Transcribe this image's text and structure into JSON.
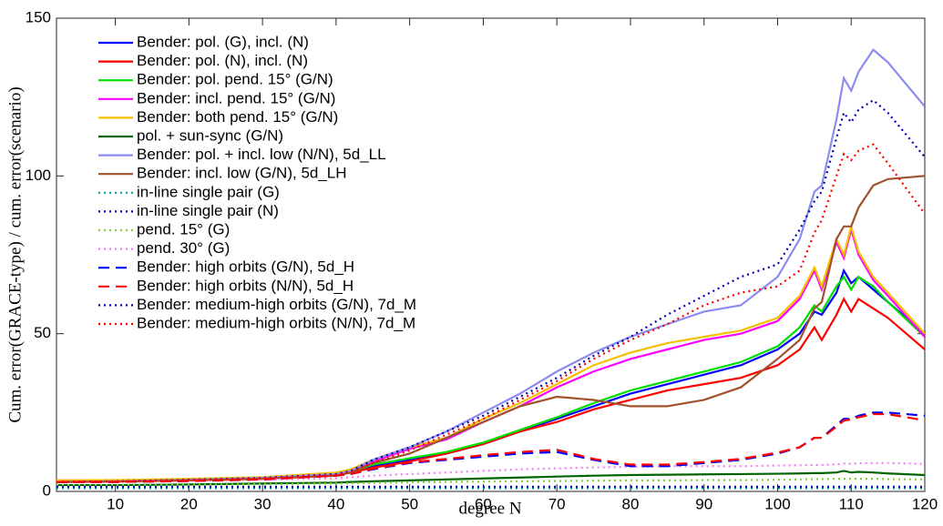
{
  "chart_data": {
    "type": "line",
    "x_label": "degree N",
    "y_label": "Cum. error(GRACE-type) / cum. error(scenario)",
    "x": [
      2,
      10,
      20,
      30,
      40,
      42,
      45,
      50,
      55,
      60,
      65,
      70,
      75,
      80,
      85,
      90,
      95,
      100,
      103,
      105,
      106,
      108,
      109,
      110,
      111,
      113,
      115,
      120
    ],
    "xlim": [
      2,
      120
    ],
    "xticks": [
      10,
      20,
      30,
      40,
      50,
      60,
      70,
      80,
      90,
      100,
      110,
      120
    ],
    "ylim": [
      0,
      150
    ],
    "yticks": [
      0,
      50,
      100,
      150
    ],
    "grid": false,
    "legend": "upper-left",
    "series": [
      {
        "name": "Bender: pol. (G), incl. (N)",
        "color": "#0000ff",
        "style": "solid",
        "values": [
          3,
          3.2,
          3.6,
          4.2,
          5.2,
          6,
          8,
          10,
          12,
          15,
          19,
          23,
          27,
          31,
          34,
          37,
          40,
          45,
          50,
          57,
          56,
          63,
          70,
          66,
          68,
          64,
          60,
          50
        ]
      },
      {
        "name": "Bender: pol. (N), incl. (N)",
        "color": "#ff0000",
        "style": "solid",
        "values": [
          3,
          3.2,
          3.5,
          4,
          5,
          6,
          7.5,
          9.5,
          12,
          15,
          19,
          22,
          26,
          29,
          32,
          34,
          36,
          40,
          45,
          52,
          48,
          56,
          61,
          57,
          61,
          58,
          55,
          45
        ]
      },
      {
        "name": "Bender: pol. pend. 15° (G/N)",
        "color": "#00e000",
        "style": "solid",
        "values": [
          3,
          3.2,
          3.6,
          4.3,
          5.3,
          6.2,
          8.5,
          10.5,
          12.5,
          15.5,
          19.5,
          23.5,
          28,
          32,
          35,
          38,
          41,
          46,
          52,
          59,
          57,
          65,
          68,
          64,
          68,
          65,
          60,
          49
        ]
      },
      {
        "name": "Bender: incl. pend. 15° (G/N)",
        "color": "#ff00ff",
        "style": "solid",
        "values": [
          3.5,
          3.5,
          3.9,
          4.4,
          5.8,
          6.8,
          9.5,
          13.5,
          16.5,
          22,
          27,
          33,
          38,
          42,
          45,
          48,
          50,
          54,
          61,
          70,
          64,
          79,
          74,
          83,
          75,
          67,
          62,
          49
        ]
      },
      {
        "name": "Bender: both pend. 15° (G/N)",
        "color": "#f5c000",
        "style": "solid",
        "values": [
          3.5,
          3.6,
          4,
          4.5,
          6,
          7,
          10,
          14,
          17,
          23,
          28,
          34,
          40,
          44,
          47,
          49,
          51,
          55,
          62,
          71,
          65,
          80,
          75,
          84,
          76,
          68,
          63,
          50
        ]
      },
      {
        "name": "pol. + sun-sync (G/N)",
        "color": "#006400",
        "style": "solid",
        "values": [
          2,
          2,
          2.2,
          2.5,
          2.8,
          3,
          3.2,
          3.5,
          3.8,
          4.1,
          4.4,
          4.7,
          5,
          5.2,
          5.3,
          5.4,
          5.5,
          5.6,
          5.7,
          5.8,
          5.8,
          6,
          6.5,
          6,
          6.2,
          6,
          5.7,
          5.2
        ]
      },
      {
        "name": "Bender: pol. + incl. low (N/N), 5d_LL",
        "color": "#8c8cf0",
        "style": "solid",
        "values": [
          3,
          3.2,
          3.7,
          4.3,
          5.5,
          6.5,
          10,
          14,
          19,
          25,
          31,
          38,
          44,
          49,
          53,
          57,
          59,
          68,
          80,
          95,
          97,
          118,
          131,
          127,
          133,
          140,
          136,
          122
        ]
      },
      {
        "name": "Bender: incl. low (G/N), 5d_LH",
        "color": "#a0522d",
        "style": "solid",
        "values": [
          3,
          3.1,
          3.5,
          4,
          5,
          6,
          9,
          12,
          17,
          22,
          27,
          30,
          29,
          27,
          27,
          29,
          33,
          42,
          48,
          58,
          60,
          80,
          84,
          84,
          90,
          97,
          99,
          100
        ]
      },
      {
        "name": "in-line single pair (G)",
        "color": "#00a0a0",
        "style": "dotted",
        "values": [
          1,
          1,
          1,
          1,
          1,
          1,
          1,
          1,
          1,
          1,
          1,
          1,
          1,
          1,
          1,
          1,
          1,
          1,
          1,
          1,
          1,
          1,
          1,
          1,
          1,
          1,
          1,
          1
        ]
      },
      {
        "name": "in-line single pair (N)",
        "color": "#0000b0",
        "style": "dotted",
        "values": [
          3,
          3.2,
          3.7,
          4.3,
          5.5,
          6.5,
          10,
          14,
          19,
          24,
          30,
          36,
          43,
          49,
          56,
          62,
          68,
          72,
          83,
          92,
          95,
          112,
          120,
          117,
          121,
          124,
          120,
          106
        ]
      },
      {
        "name": "pend. 15° (G)",
        "color": "#80d040",
        "style": "dotted",
        "values": [
          2,
          2,
          2.1,
          2.3,
          2.5,
          2.6,
          2.7,
          2.9,
          3,
          3.1,
          3.2,
          3.3,
          3.4,
          3.5,
          3.5,
          3.6,
          3.6,
          3.7,
          3.8,
          3.9,
          3.9,
          4,
          4,
          4,
          4,
          4,
          3.9,
          3.8
        ]
      },
      {
        "name": "pend. 30° (G)",
        "color": "#f080f0",
        "style": "dotted",
        "values": [
          3,
          3,
          3.3,
          3.7,
          4.2,
          4.5,
          5,
          5.5,
          6,
          6.5,
          7,
          7.3,
          7.6,
          7.8,
          8,
          8,
          8,
          8.2,
          8.3,
          8.4,
          8.4,
          8.6,
          8.8,
          8.8,
          8.9,
          9,
          9,
          8.7
        ]
      },
      {
        "name": "Bender: high orbits (G/N), 5d_H",
        "color": "#0000ff",
        "style": "dashed",
        "values": [
          3,
          3,
          3.3,
          3.8,
          5,
          5.5,
          7,
          9,
          10,
          11,
          12,
          12.5,
          10,
          8,
          8,
          9,
          10,
          12,
          14,
          17,
          17,
          21,
          23,
          23,
          24,
          25,
          25,
          24
        ]
      },
      {
        "name": "Bender: high orbits (N/N), 5d_H",
        "color": "#ff0000",
        "style": "dashed",
        "values": [
          3,
          3,
          3.3,
          3.8,
          5,
          5.5,
          7.2,
          9.2,
          10.3,
          11.5,
          12.5,
          13.2,
          10.3,
          8.5,
          8.5,
          9.3,
          10.3,
          12.3,
          14,
          17,
          17,
          20.5,
          22.5,
          22.8,
          23.5,
          24.5,
          24.5,
          22.5
        ]
      },
      {
        "name": "Bender: medium-high orbits (G/N), 7d_M",
        "color": "#0000b0",
        "style": "dotted",
        "values": [
          1.5,
          1.5,
          1.5,
          1.5,
          1.5,
          1.5,
          1.5,
          1.5,
          1.5,
          1.5,
          1.5,
          1.5,
          1.5,
          1.5,
          1.5,
          1.5,
          1.5,
          1.5,
          1.5,
          1.5,
          1.5,
          1.5,
          1.5,
          1.5,
          1.5,
          1.5,
          1.5,
          1.5
        ]
      },
      {
        "name": "Bender: medium-high orbits (N/N), 7d_M",
        "color": "#ff0000",
        "style": "dotted",
        "values": [
          3,
          3.2,
          3.6,
          4.2,
          5.3,
          6.2,
          9,
          13,
          18,
          23,
          29,
          35,
          42,
          48,
          53,
          59,
          63,
          65,
          70,
          82,
          86,
          100,
          107,
          105,
          108,
          110,
          104,
          88
        ]
      }
    ]
  }
}
